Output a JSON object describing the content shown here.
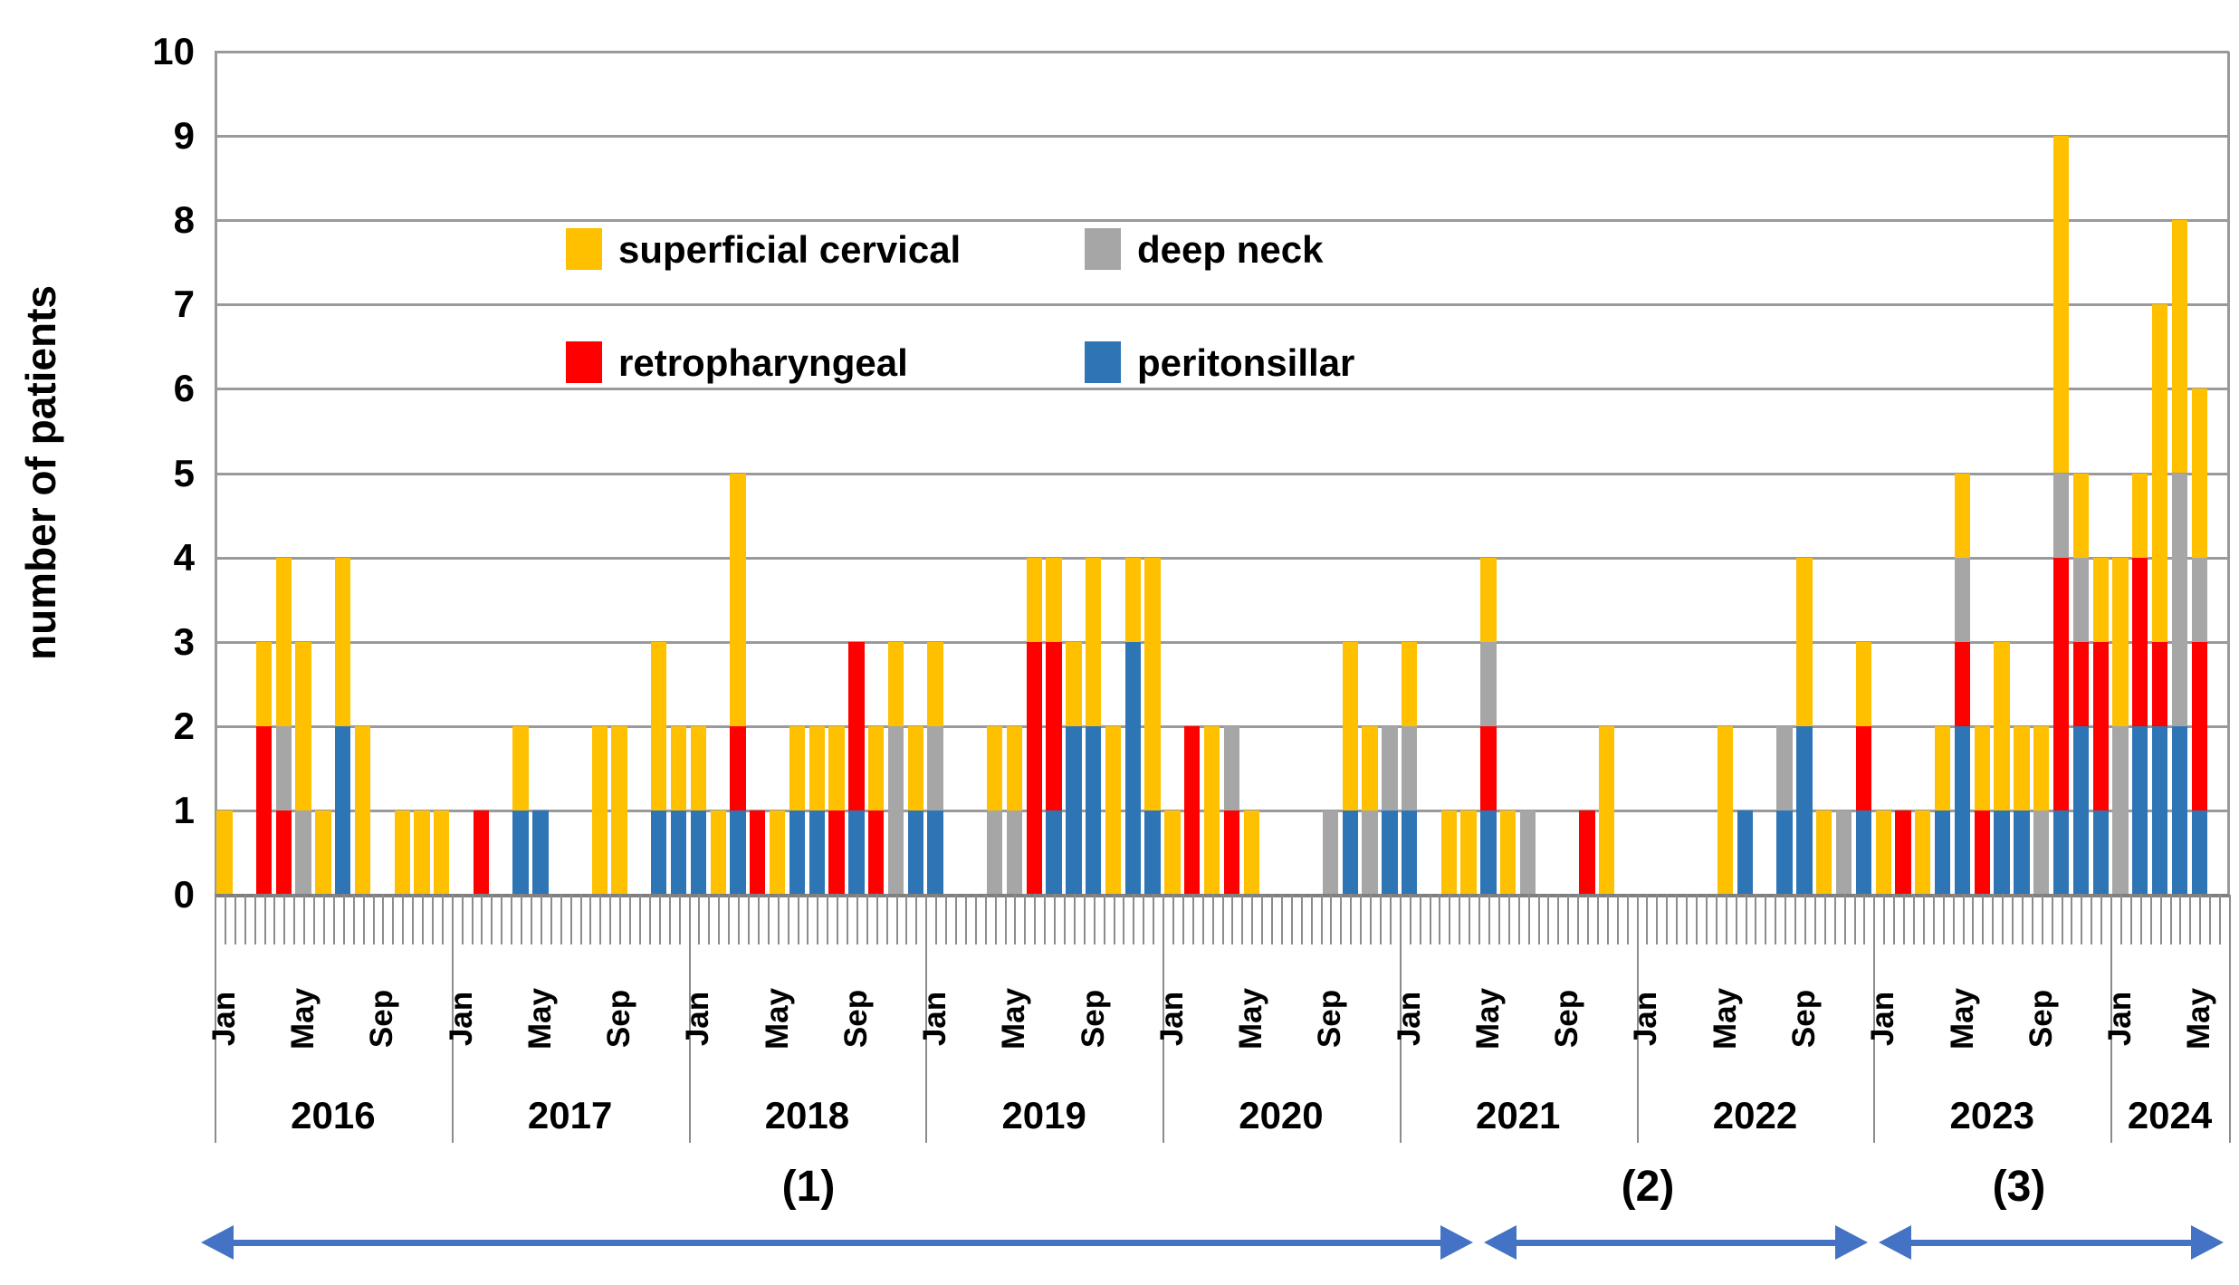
{
  "colors": {
    "superficial_cervical": "#FFC000",
    "deep_neck": "#A6A6A6",
    "retropharyngeal": "#FF0000",
    "peritonsillar": "#2E75B6",
    "arrow": "#4472C4",
    "gridline": "#9a9a9a",
    "tick": "#8c8c8c"
  },
  "y_axis": {
    "title": "number of patients",
    "ticks": [
      "0",
      "1",
      "2",
      "3",
      "4",
      "5",
      "6",
      "7",
      "8",
      "9",
      "10"
    ],
    "min": 0,
    "max": 10
  },
  "legend": {
    "superficial_cervical": "superficial cervical",
    "deep_neck": "deep neck",
    "retropharyngeal": "retropharyngeal",
    "peritonsillar": "peritonsillar"
  },
  "phases": {
    "p1": "(1)",
    "p2": "(2)",
    "p3": "(3)"
  },
  "chart_data": {
    "type": "bar",
    "stacked": true,
    "title": "",
    "xlabel": "",
    "ylabel": "number of patients",
    "ylim": [
      0,
      10
    ],
    "grid": true,
    "legend_position": "upper-center-inside",
    "month_tick_labels_shown": [
      "Jan",
      "May",
      "Sep"
    ],
    "stack_order_bottom_to_top": [
      "peritonsillar",
      "retropharyngeal",
      "deep_neck",
      "superficial_cervical"
    ],
    "years": [
      {
        "year": 2016,
        "peritonsillar": [
          0,
          0,
          0,
          0,
          0,
          0,
          2,
          0,
          0,
          0,
          0,
          0
        ],
        "retropharyngeal": [
          0,
          0,
          2,
          1,
          0,
          0,
          0,
          0,
          0,
          0,
          0,
          0
        ],
        "deep_neck": [
          0,
          0,
          0,
          1,
          1,
          0,
          0,
          0,
          0,
          0,
          0,
          0
        ],
        "superficial": [
          1,
          0,
          1,
          2,
          2,
          1,
          2,
          2,
          0,
          1,
          1,
          1
        ]
      },
      {
        "year": 2017,
        "peritonsillar": [
          0,
          0,
          0,
          1,
          1,
          0,
          0,
          0,
          0,
          0,
          1,
          1
        ],
        "retropharyngeal": [
          0,
          1,
          0,
          0,
          0,
          0,
          0,
          0,
          0,
          0,
          0,
          0
        ],
        "deep_neck": [
          0,
          0,
          0,
          0,
          0,
          0,
          0,
          0,
          0,
          0,
          0,
          0
        ],
        "superficial": [
          0,
          0,
          0,
          1,
          0,
          0,
          0,
          2,
          2,
          0,
          2,
          1
        ]
      },
      {
        "year": 2018,
        "peritonsillar": [
          1,
          0,
          1,
          0,
          0,
          1,
          1,
          0,
          1,
          0,
          0,
          1
        ],
        "retropharyngeal": [
          0,
          0,
          1,
          1,
          0,
          0,
          0,
          1,
          2,
          1,
          0,
          0
        ],
        "deep_neck": [
          0,
          0,
          0,
          0,
          0,
          0,
          0,
          0,
          0,
          0,
          2,
          0
        ],
        "superficial": [
          1,
          1,
          3,
          0,
          1,
          1,
          1,
          1,
          0,
          1,
          1,
          1
        ]
      },
      {
        "year": 2019,
        "peritonsillar": [
          1,
          0,
          0,
          0,
          0,
          0,
          1,
          2,
          2,
          0,
          3,
          1
        ],
        "retropharyngeal": [
          0,
          0,
          0,
          0,
          0,
          3,
          2,
          0,
          0,
          0,
          0,
          0
        ],
        "deep_neck": [
          1,
          0,
          0,
          1,
          1,
          0,
          0,
          0,
          0,
          0,
          0,
          0
        ],
        "superficial": [
          1,
          0,
          0,
          1,
          1,
          1,
          1,
          1,
          2,
          2,
          1,
          3
        ]
      },
      {
        "year": 2020,
        "peritonsillar": [
          0,
          0,
          0,
          0,
          0,
          0,
          0,
          0,
          0,
          1,
          0,
          1
        ],
        "retropharyngeal": [
          0,
          2,
          0,
          1,
          0,
          0,
          0,
          0,
          0,
          0,
          0,
          0
        ],
        "deep_neck": [
          0,
          0,
          0,
          1,
          0,
          0,
          0,
          0,
          1,
          0,
          1,
          1
        ],
        "superficial": [
          1,
          0,
          2,
          0,
          1,
          0,
          0,
          0,
          0,
          2,
          1,
          0
        ]
      },
      {
        "year": 2021,
        "peritonsillar": [
          1,
          0,
          0,
          0,
          1,
          0,
          0,
          0,
          0,
          0,
          0,
          0
        ],
        "retropharyngeal": [
          0,
          0,
          0,
          0,
          1,
          0,
          0,
          0,
          0,
          1,
          0,
          0
        ],
        "deep_neck": [
          1,
          0,
          0,
          0,
          1,
          0,
          1,
          0,
          0,
          0,
          0,
          0
        ],
        "superficial": [
          1,
          0,
          1,
          1,
          1,
          1,
          0,
          0,
          0,
          0,
          2,
          0
        ]
      },
      {
        "year": 2022,
        "peritonsillar": [
          0,
          0,
          0,
          0,
          0,
          1,
          0,
          1,
          2,
          0,
          0,
          1
        ],
        "retropharyngeal": [
          0,
          0,
          0,
          0,
          0,
          0,
          0,
          0,
          0,
          0,
          0,
          1
        ],
        "deep_neck": [
          0,
          0,
          0,
          0,
          0,
          0,
          0,
          1,
          0,
          0,
          1,
          0
        ],
        "superficial": [
          0,
          0,
          0,
          0,
          2,
          0,
          0,
          0,
          2,
          1,
          0,
          1
        ]
      },
      {
        "year": 2023,
        "peritonsillar": [
          0,
          0,
          0,
          1,
          2,
          0,
          1,
          1,
          0,
          1,
          2,
          1
        ],
        "retropharyngeal": [
          0,
          1,
          0,
          0,
          1,
          1,
          0,
          0,
          0,
          3,
          1,
          2
        ],
        "deep_neck": [
          0,
          0,
          0,
          0,
          1,
          0,
          0,
          0,
          1,
          1,
          1,
          0
        ],
        "superficial": [
          1,
          0,
          1,
          1,
          1,
          1,
          2,
          1,
          1,
          4,
          1,
          1
        ]
      },
      {
        "year": 2024,
        "peritonsillar": [
          0,
          2,
          2,
          2,
          1,
          0
        ],
        "retropharyngeal": [
          0,
          2,
          1,
          0,
          2,
          0
        ],
        "deep_neck": [
          2,
          0,
          0,
          3,
          1,
          0
        ],
        "superficial": [
          2,
          1,
          4,
          3,
          2,
          0
        ]
      }
    ],
    "phase_arrows": [
      {
        "label": "(1)",
        "from_month_index": 0,
        "to_month_index": 64
      },
      {
        "label": "(2)",
        "from_month_index": 64,
        "to_month_index": 84
      },
      {
        "label": "(3)",
        "from_month_index": 84,
        "to_month_index": 102
      }
    ]
  }
}
